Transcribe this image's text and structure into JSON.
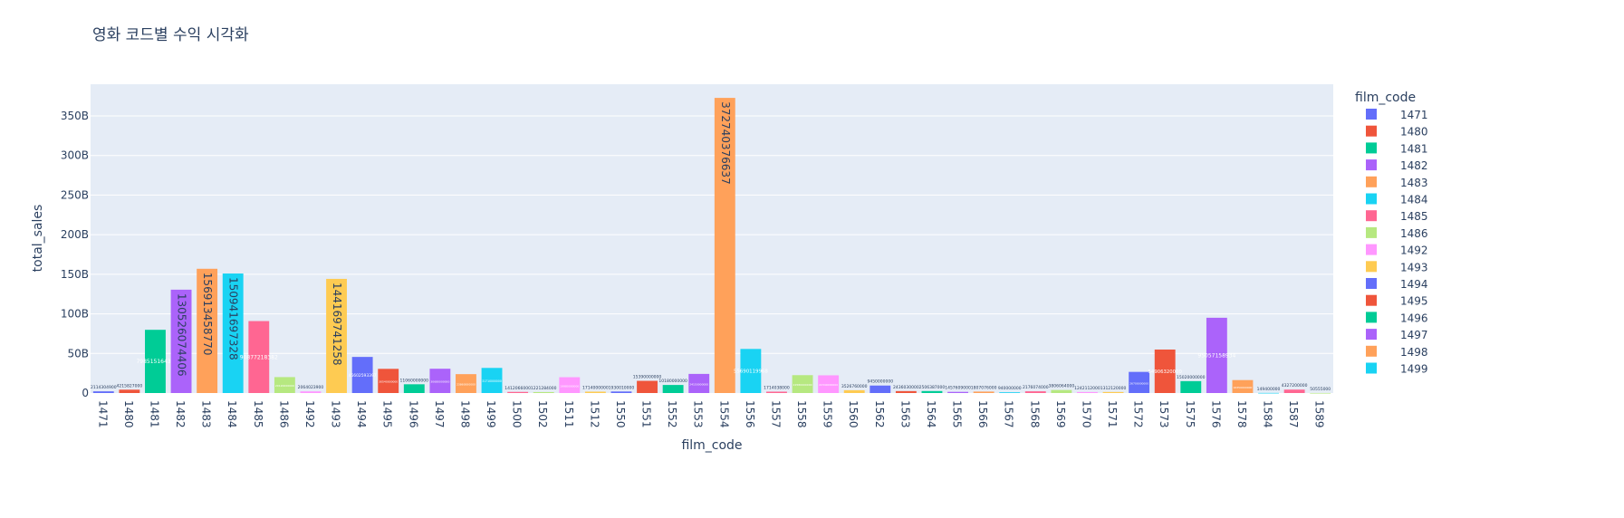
{
  "chart_data": {
    "type": "bar",
    "title": "영화 코드별 수익 시각화",
    "xlabel": "film_code",
    "ylabel": "total_sales",
    "ylim": [
      0,
      390000000000
    ],
    "yticks": [
      {
        "value": 0,
        "label": "0"
      },
      {
        "value": 50000000000,
        "label": "50B"
      },
      {
        "value": 100000000000,
        "label": "100B"
      },
      {
        "value": 150000000000,
        "label": "150B"
      },
      {
        "value": 200000000000,
        "label": "200B"
      },
      {
        "value": 250000000000,
        "label": "250B"
      },
      {
        "value": 300000000000,
        "label": "300B"
      },
      {
        "value": 350000000000,
        "label": "350B"
      }
    ],
    "grid": true,
    "legend_title": "film_code",
    "legend_position": "right",
    "colorway": [
      "#636efa",
      "#EF553B",
      "#00cc96",
      "#ab63fa",
      "#FFA15A",
      "#19d3f3",
      "#FF6692",
      "#B6E880",
      "#FF97FF",
      "#FECB52"
    ],
    "bars": [
      {
        "code": "1471",
        "value": 2114304900,
        "label": "2114304900"
      },
      {
        "code": "1480",
        "value": 4215827000,
        "label": "4215827000"
      },
      {
        "code": "1481",
        "value": 79851516436,
        "label": "79851516436"
      },
      {
        "code": "1482",
        "value": 130526074406,
        "label": "130526074406"
      },
      {
        "code": "1483",
        "value": 156913458770,
        "label": "156913458770"
      },
      {
        "code": "1484",
        "value": 150941697328,
        "label": "150941697328"
      },
      {
        "code": "1485",
        "value": 90877218382,
        "label": "90877218382"
      },
      {
        "code": "1486",
        "value": 20120000000,
        "label": "20120000000"
      },
      {
        "code": "1492",
        "value": 2064023900,
        "label": "2064023900"
      },
      {
        "code": "1493",
        "value": 144169741258,
        "label": "144169741258"
      },
      {
        "code": "1494",
        "value": 45602593397,
        "label": "45602593397"
      },
      {
        "code": "1495",
        "value": 30540000000,
        "label": "30540000000"
      },
      {
        "code": "1496",
        "value": 11060000000,
        "label": "11060000000"
      },
      {
        "code": "1497",
        "value": 30680000000,
        "label": "30680000000"
      },
      {
        "code": "1498",
        "value": 23860000000,
        "label": "23860000000"
      },
      {
        "code": "1499",
        "value": 31710000000,
        "label": "31710000000"
      },
      {
        "code": "1500",
        "value": 1412066000,
        "label": "1412066000"
      },
      {
        "code": "1502",
        "value": 1221284000,
        "label": "1221284000"
      },
      {
        "code": "1511",
        "value": 19980000000,
        "label": "19980000000"
      },
      {
        "code": "1512",
        "value": 1714000000,
        "label": "1714000000"
      },
      {
        "code": "1550",
        "value": 1930010000,
        "label": "1930010000"
      },
      {
        "code": "1551",
        "value": 15390000000,
        "label": "15390000000"
      },
      {
        "code": "1552",
        "value": 10180000000,
        "label": "10180000000"
      },
      {
        "code": "1553",
        "value": 24150000000,
        "label": "24150000000"
      },
      {
        "code": "1554",
        "value": 372740376637,
        "label": "372740376637"
      },
      {
        "code": "1556",
        "value": 55690119968,
        "label": "55690119968"
      },
      {
        "code": "1557",
        "value": 1714038000,
        "label": "1714038000"
      },
      {
        "code": "1558",
        "value": 22580000000,
        "label": "22580000000"
      },
      {
        "code": "1559",
        "value": 22340000000,
        "label": "22340000000"
      },
      {
        "code": "1560",
        "value": 3526760000,
        "label": "3526760000"
      },
      {
        "code": "1562",
        "value": 9450000000,
        "label": "9450000000"
      },
      {
        "code": "1563",
        "value": 2436030000,
        "label": "2436030000"
      },
      {
        "code": "1564",
        "value": 2506387000,
        "label": "2506387000"
      },
      {
        "code": "1565",
        "value": 1457609000,
        "label": "1457609000"
      },
      {
        "code": "1566",
        "value": 1807076000,
        "label": "1807076000"
      },
      {
        "code": "1567",
        "value": 940000000,
        "label": "940000000"
      },
      {
        "code": "1568",
        "value": 2176074000,
        "label": "2176074000"
      },
      {
        "code": "1569",
        "value": 3806064000,
        "label": "3806064000"
      },
      {
        "code": "1570",
        "value": 1242112000,
        "label": "1242112000"
      },
      {
        "code": "1571",
        "value": 1312120000,
        "label": "1312120000"
      },
      {
        "code": "1572",
        "value": 26700000000,
        "label": "26700000000"
      },
      {
        "code": "1573",
        "value": 54906320000,
        "label": "54906320000"
      },
      {
        "code": "1575",
        "value": 15020000000,
        "label": "15020000000"
      },
      {
        "code": "1576",
        "value": 95057158934,
        "label": "95057158934"
      },
      {
        "code": "1578",
        "value": 16350000000,
        "label": "16350000000"
      },
      {
        "code": "1584",
        "value": 149400000,
        "label": "149400000"
      },
      {
        "code": "1587",
        "value": 4327200000,
        "label": "4327200000"
      },
      {
        "code": "1589",
        "value": 50555000,
        "label": "50555000"
      }
    ]
  }
}
